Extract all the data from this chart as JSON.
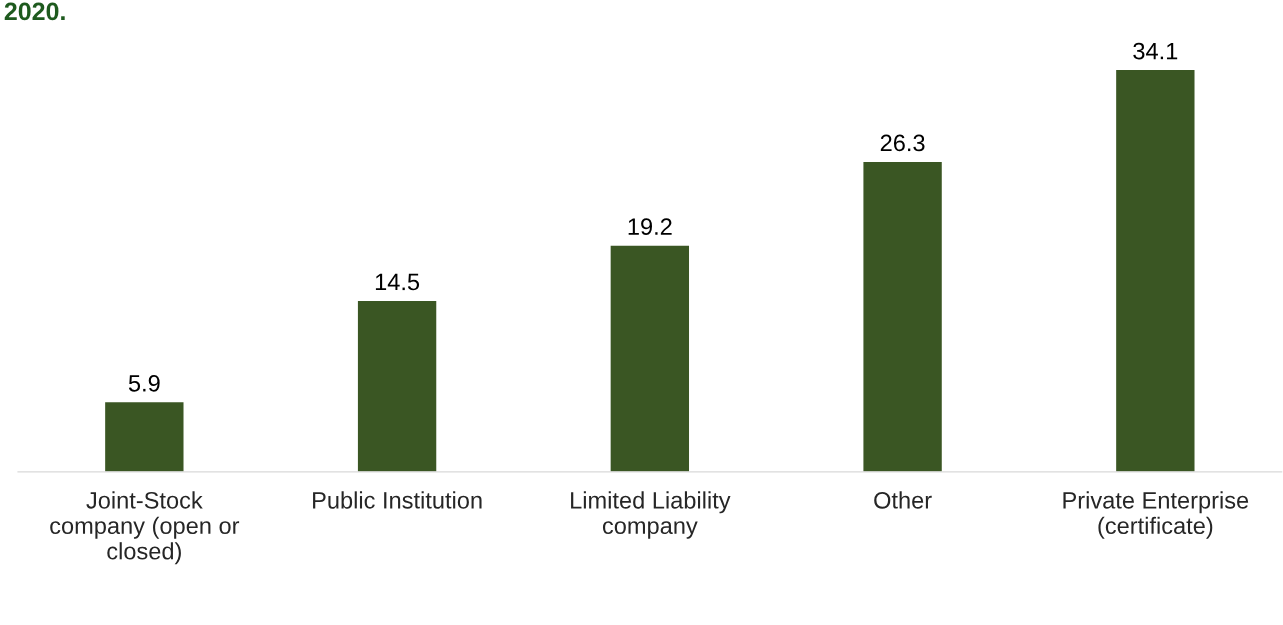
{
  "chart_data": {
    "type": "bar",
    "title": "2020.",
    "categories": [
      "Joint-Stock\ncompany (open or\nclosed)",
      "Public Institution",
      "Limited Liability\ncompany",
      "Other",
      "Private Enterprise\n(certificate)"
    ],
    "values": [
      5.9,
      14.5,
      19.2,
      26.3,
      34.1
    ],
    "color": "#3a5623",
    "data_labels": true
  }
}
